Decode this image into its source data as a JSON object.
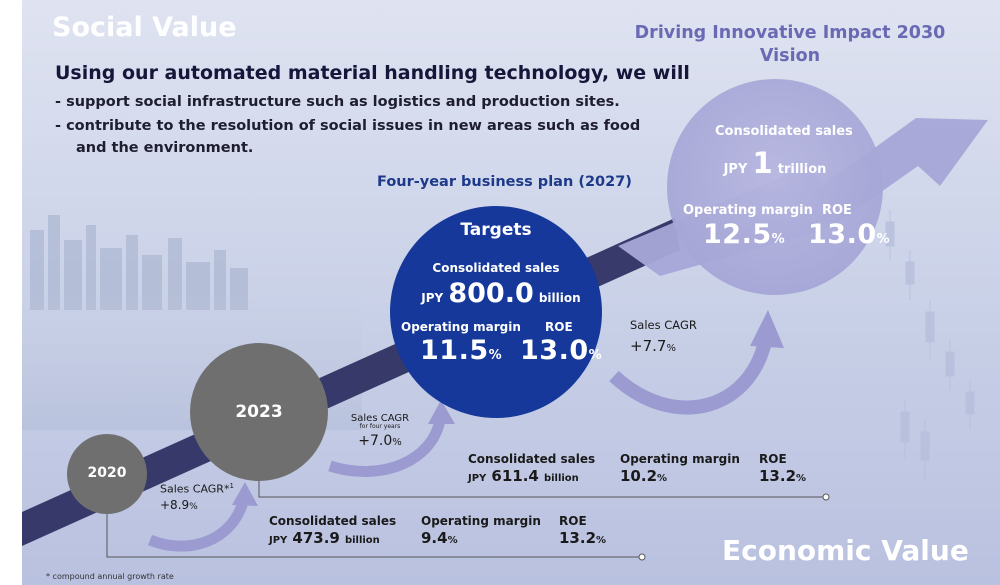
{
  "header": {
    "social_value": "Social Value",
    "economic_value": "Economic Value",
    "headline": "Using our automated material handling technology, we will",
    "bullets": [
      "- support social infrastructure such as logistics and production sites.",
      "- contribute to the resolution of social issues in new areas such as food",
      "and the environment."
    ]
  },
  "vision": {
    "title_line1": "Driving Innovative Impact 2030",
    "title_line2": "Vision",
    "sales_label": "Consolidated sales",
    "sales_prefix": "JPY",
    "sales_value": "1",
    "sales_unit": "trillion",
    "op_margin_label": "Operating margin",
    "op_margin_value": "12.5",
    "roe_label": "ROE",
    "roe_value": "13.0",
    "pct": "%"
  },
  "plan": {
    "title": "Four-year business plan (2027)",
    "targets_label": "Targets",
    "sales_label": "Consolidated sales",
    "sales_prefix": "JPY",
    "sales_value": "800.0",
    "sales_unit": "billion",
    "op_margin_label": "Operating margin",
    "op_margin_value": "11.5",
    "roe_label": "ROE",
    "roe_value": "13.0",
    "pct": "%"
  },
  "milestones": {
    "y2020": "2020",
    "y2023": "2023"
  },
  "cagr": {
    "c2020_label": "Sales CAGR*",
    "c2020_sup": "1",
    "c2020_value": "+8.9",
    "c2023_label": "Sales CAGR",
    "c2023_sub": "for four years",
    "c2023_value": "+7.0",
    "c2027_label": "Sales CAGR",
    "c2027_value": "+7.7",
    "pct": "%"
  },
  "results_2023": {
    "sales_label": "Consolidated sales",
    "sales_prefix": "JPY",
    "sales_value": "611.4",
    "sales_unit": "billion",
    "op_margin_label": "Operating margin",
    "op_margin_value": "10.2",
    "roe_label": "ROE",
    "roe_value": "13.2",
    "pct": "%"
  },
  "results_2020": {
    "sales_label": "Consolidated sales",
    "sales_prefix": "JPY",
    "sales_value": "473.9",
    "sales_unit": "billion",
    "op_margin_label": "Operating margin",
    "op_margin_value": "9.4",
    "roe_label": "ROE",
    "roe_value": "13.2",
    "pct": "%"
  },
  "footnote": "* compound annual growth rate",
  "colors": {
    "navy_circle": "#16389a",
    "grey_circle": "#6f6f6f",
    "lavender": "#9b9bd2",
    "vision_title": "#6a6ab4"
  }
}
